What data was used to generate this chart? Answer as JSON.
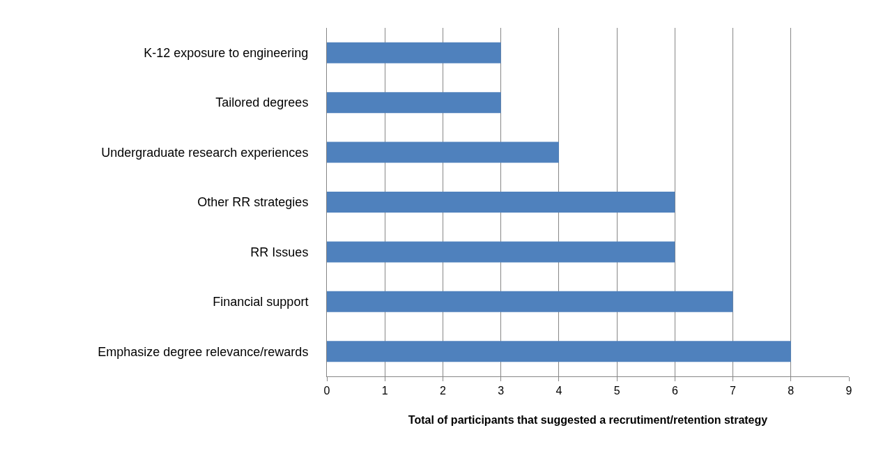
{
  "chart_data": {
    "type": "bar",
    "orientation": "horizontal",
    "categories": [
      "K-12 exposure to engineering",
      "Tailored degrees",
      "Undergraduate research experiences",
      "Other RR strategies",
      "RR Issues",
      "Financial support",
      "Emphasize degree relevance/rewards"
    ],
    "values": [
      3,
      3,
      4,
      6,
      6,
      7,
      8
    ],
    "color": "#4f81bd",
    "xlabel": "Total of participants that suggested a recrutiment/retention strategy",
    "xlim": [
      0,
      9
    ],
    "xticks": [
      0,
      1,
      2,
      3,
      4,
      5,
      6,
      7,
      8,
      9
    ],
    "grid": "x",
    "legend": false
  }
}
